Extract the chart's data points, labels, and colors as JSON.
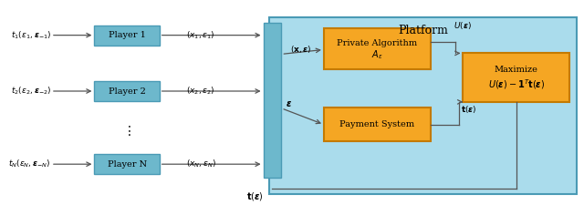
{
  "bg_color": "#ffffff",
  "platform_bg": "#aadcec",
  "player_box_color": "#6db8cc",
  "orange_box_color": "#f5a623",
  "orange_edge_color": "#c47a00",
  "platform_edge_color": "#4a9ab5",
  "player_edge_color": "#4a9ab5",
  "dark_line_color": "#555555",
  "text_color": "#000000",
  "platform_title": "Platform",
  "player1_label": "Player 1",
  "player2_label": "Player 2",
  "playerN_label": "Player N",
  "private_alg_line1": "Private Algorithm",
  "private_alg_line2": "$A_{\\epsilon}$",
  "payment_label": "Payment System",
  "maximize_line1": "Maximize",
  "maximize_line2": "$U(\\boldsymbol{\\epsilon}) - \\mathbf{1}^T\\mathbf{t}(\\boldsymbol{\\epsilon})$",
  "t1_label": "$t_1(\\epsilon_1, \\boldsymbol{\\epsilon}_{-1})$",
  "t2_label": "$t_2(\\epsilon_2, \\boldsymbol{\\epsilon}_{-2})$",
  "tN_label": "$t_N(\\epsilon_N, \\boldsymbol{\\epsilon}_{-N})$",
  "x1_label": "$(x_1, \\epsilon_1)$",
  "x2_label": "$(x_2, \\epsilon_2)$",
  "xN_label": "$(x_N, \\epsilon_N)$",
  "xeps_label": "$(\\mathbf{x}, \\boldsymbol{\\epsilon})$",
  "eps_label": "$\\boldsymbol{\\epsilon}$",
  "U_label": "$U(\\boldsymbol{\\epsilon})$",
  "t_label": "$\\mathbf{t}(\\boldsymbol{\\epsilon})$",
  "t_bottom_label": "$\\mathbf{t}(\\boldsymbol{\\epsilon})$"
}
